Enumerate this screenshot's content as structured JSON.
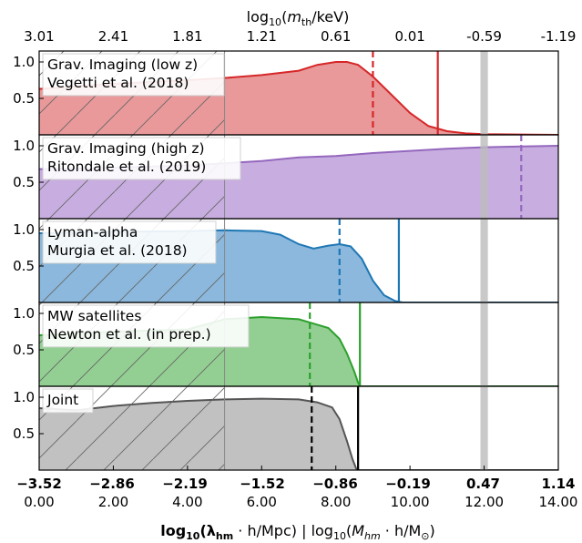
{
  "chart_data": {
    "type": "area",
    "x_range": [
      0,
      14
    ],
    "top_axis": {
      "label_parts": [
        "log",
        "10",
        "(",
        "m",
        "th",
        "/keV)"
      ],
      "ticks": [
        {
          "x": 0,
          "label": "3.01"
        },
        {
          "x": 2,
          "label": "2.41"
        },
        {
          "x": 4,
          "label": "1.81"
        },
        {
          "x": 6,
          "label": "1.21"
        },
        {
          "x": 8,
          "label": "0.61"
        },
        {
          "x": 10,
          "label": "0.01"
        },
        {
          "x": 12,
          "label": "-0.59"
        },
        {
          "x": 14,
          "label": "-1.19"
        }
      ]
    },
    "bottom_axis": {
      "label_parts": [
        "log",
        "10",
        "(λ",
        "hm",
        " · h/Mpc)",
        " | log",
        "10",
        "(",
        "M",
        "hm",
        " · h/M",
        "⊙",
        ")"
      ],
      "ticks_lambda": [
        {
          "x": 0,
          "label": "−3.52"
        },
        {
          "x": 1.6,
          "label": "−2.86"
        },
        {
          "x": 3.2,
          "label": "−2.19"
        },
        {
          "x": 4.9,
          "label": "−1.52"
        },
        {
          "x": 6.5,
          "label": "−0.86"
        },
        {
          "x": 8.1,
          "label": "−0.19"
        },
        {
          "x": 9.75,
          "label": "0.47"
        },
        {
          "x": 11.4,
          "label": "1.14"
        }
      ],
      "ticks_mass": [
        {
          "x": 0,
          "label": "0.00"
        },
        {
          "x": 2,
          "label": "2.00"
        },
        {
          "x": 4,
          "label": "4.00"
        },
        {
          "x": 6,
          "label": "6.00"
        },
        {
          "x": 8,
          "label": "8.00"
        },
        {
          "x": 10,
          "label": "10.00"
        },
        {
          "x": 12,
          "label": "12.00"
        },
        {
          "x": 14,
          "label": "14.00"
        }
      ]
    },
    "y_ticks": [
      "0.5",
      "1.0"
    ],
    "y_range": [
      0,
      1.15
    ],
    "gray_band": [
      11.9,
      12.1
    ],
    "hatch_region": [
      0,
      5
    ],
    "panels": [
      {
        "name": "grav-low-z",
        "label_lines": [
          "Grav. Imaging (low z)",
          "Vegetti et al. (2018)"
        ],
        "color": "#d62728",
        "fill": "#e9999a",
        "dashed_x": 9.0,
        "solid_x": 10.75,
        "curve": [
          [
            0,
            0.63
          ],
          [
            2,
            0.7
          ],
          [
            4,
            0.75
          ],
          [
            5,
            0.78
          ],
          [
            6,
            0.82
          ],
          [
            7,
            0.88
          ],
          [
            7.5,
            0.96
          ],
          [
            8,
            1.0
          ],
          [
            8.3,
            1.0
          ],
          [
            8.6,
            0.96
          ],
          [
            9,
            0.8
          ],
          [
            9.5,
            0.55
          ],
          [
            10,
            0.3
          ],
          [
            10.5,
            0.12
          ],
          [
            11,
            0.05
          ],
          [
            11.5,
            0.02
          ],
          [
            12,
            0.01
          ],
          [
            14,
            0.0
          ]
        ]
      },
      {
        "name": "grav-high-z",
        "label_lines": [
          "Grav. Imaging (high z)",
          "Ritondale et al. (2019)"
        ],
        "color": "#9467bd",
        "fill": "#c8aee0",
        "dashed_x": 13.0,
        "solid_x": null,
        "curve": [
          [
            0,
            0.68
          ],
          [
            2,
            0.7
          ],
          [
            4,
            0.73
          ],
          [
            6,
            0.79
          ],
          [
            7,
            0.84
          ],
          [
            8,
            0.86
          ],
          [
            9,
            0.9
          ],
          [
            10,
            0.93
          ],
          [
            11,
            0.96
          ],
          [
            12,
            0.98
          ],
          [
            13,
            0.99
          ],
          [
            14,
            1.0
          ]
        ]
      },
      {
        "name": "lyman-alpha",
        "label_lines": [
          "Lyman-alpha",
          "Murgia et al. (2018)"
        ],
        "color": "#1f77b4",
        "fill": "#8bb8dc",
        "dashed_x": 8.1,
        "solid_x": 9.7,
        "curve": [
          [
            0,
            0.95
          ],
          [
            2,
            0.97
          ],
          [
            4,
            0.98
          ],
          [
            5,
            0.99
          ],
          [
            6,
            0.98
          ],
          [
            6.5,
            0.93
          ],
          [
            7,
            0.8
          ],
          [
            7.4,
            0.74
          ],
          [
            7.8,
            0.78
          ],
          [
            8.1,
            0.8
          ],
          [
            8.4,
            0.77
          ],
          [
            8.7,
            0.6
          ],
          [
            9,
            0.3
          ],
          [
            9.3,
            0.1
          ],
          [
            9.6,
            0.02
          ],
          [
            9.8,
            0.0
          ],
          [
            14,
            0.0
          ]
        ]
      },
      {
        "name": "mw-satellites",
        "label_lines": [
          "MW satellites",
          "Newton et al. (in prep.)"
        ],
        "color": "#2ca02c",
        "fill": "#93cf93",
        "dashed_x": 7.3,
        "solid_x": 8.65,
        "curve": [
          [
            0,
            0.7
          ],
          [
            2,
            0.75
          ],
          [
            4,
            0.78
          ],
          [
            5,
            0.92
          ],
          [
            6,
            0.95
          ],
          [
            7,
            0.92
          ],
          [
            7.4,
            0.86
          ],
          [
            7.8,
            0.8
          ],
          [
            8.1,
            0.65
          ],
          [
            8.3,
            0.45
          ],
          [
            8.5,
            0.2
          ],
          [
            8.6,
            0.05
          ],
          [
            8.65,
            0.0
          ],
          [
            14,
            0.0
          ]
        ]
      },
      {
        "name": "joint",
        "label_lines": [
          "Joint"
        ],
        "color": "#555555",
        "fill": "#c1c1c1",
        "dashed_x": 7.35,
        "solid_x": 8.6,
        "curve": [
          [
            0,
            0.85
          ],
          [
            1,
            0.82
          ],
          [
            2,
            0.88
          ],
          [
            3,
            0.92
          ],
          [
            4,
            0.95
          ],
          [
            5,
            0.97
          ],
          [
            6,
            0.98
          ],
          [
            7,
            0.97
          ],
          [
            7.5,
            0.93
          ],
          [
            7.9,
            0.86
          ],
          [
            8.1,
            0.7
          ],
          [
            8.3,
            0.4
          ],
          [
            8.45,
            0.15
          ],
          [
            8.55,
            0.02
          ],
          [
            8.6,
            0.0
          ],
          [
            14,
            0.0
          ]
        ]
      }
    ]
  }
}
